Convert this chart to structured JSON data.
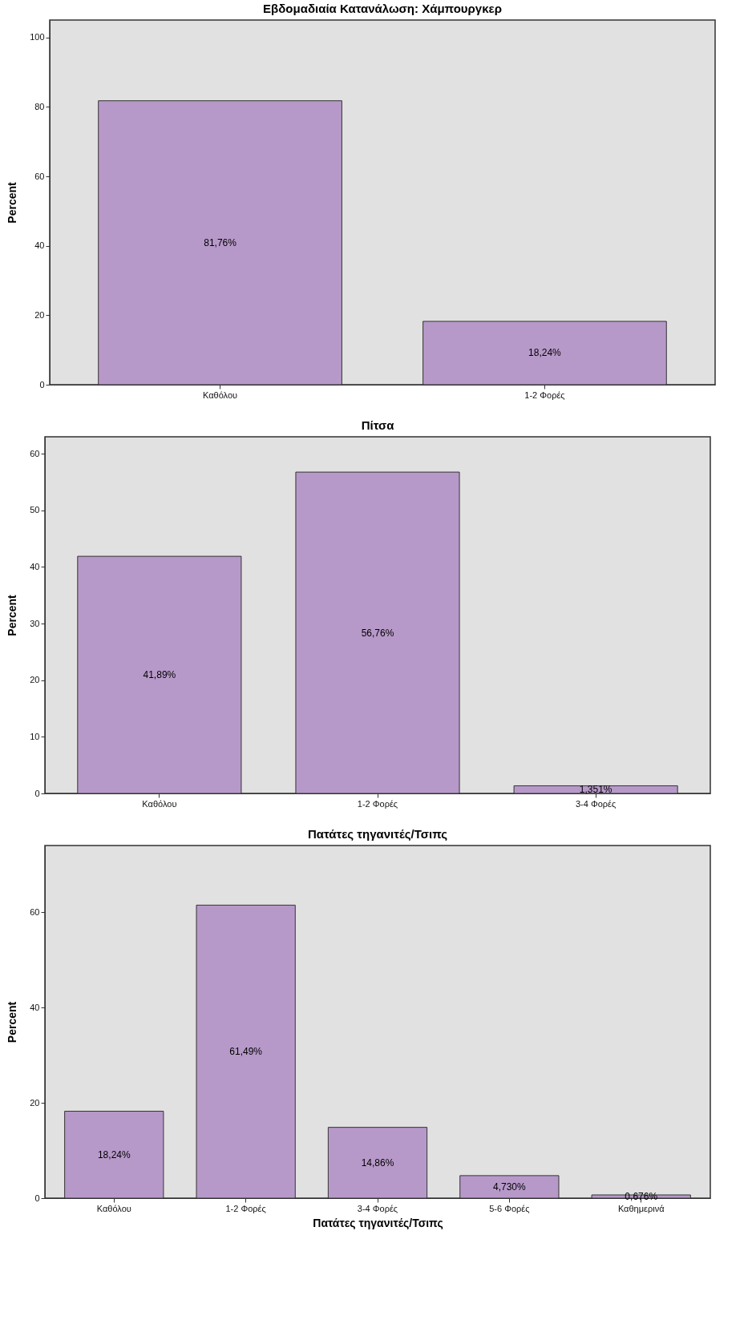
{
  "chart_data": [
    {
      "type": "bar",
      "title": "Εβδομαδιαία Κατανάλωση: Χάμπουργκερ",
      "ylabel": "Percent",
      "categories": [
        "Καθόλου",
        "1-2 Φορές"
      ],
      "values": [
        81.76,
        18.24
      ],
      "value_labels": [
        "81,76%",
        "18,24%"
      ],
      "color": "#b799c9",
      "ylim": [
        0,
        105
      ],
      "yticks": [
        0,
        20,
        40,
        60,
        80,
        100
      ],
      "grid": false
    },
    {
      "type": "bar",
      "title": "Πίτσα",
      "ylabel": "Percent",
      "categories": [
        "Καθόλου",
        "1-2 Φορές",
        "3-4 Φορές"
      ],
      "values": [
        41.89,
        56.76,
        1.351
      ],
      "value_labels": [
        "41,89%",
        "56,76%",
        "1,351%"
      ],
      "color": "#b799c9",
      "ylim": [
        0,
        63
      ],
      "yticks": [
        0,
        10,
        20,
        30,
        40,
        50,
        60
      ],
      "grid": false
    },
    {
      "type": "bar",
      "title": "Πατάτες τηγανιτές/Τσιπς",
      "xlabel": "Πατάτες τηγανιτές/Τσιπς",
      "ylabel": "Percent",
      "categories": [
        "Καθόλου",
        "1-2 Φορές",
        "3-4 Φορές",
        "5-6 Φορές",
        "Καθημερινά"
      ],
      "values": [
        18.24,
        61.49,
        14.86,
        4.73,
        0.676
      ],
      "value_labels": [
        "18,24%",
        "61,49%",
        "14,86%",
        "4,730%",
        "0,676%"
      ],
      "color": "#b799c9",
      "ylim": [
        0,
        74
      ],
      "yticks": [
        0,
        20,
        40,
        60
      ],
      "grid": false
    }
  ]
}
